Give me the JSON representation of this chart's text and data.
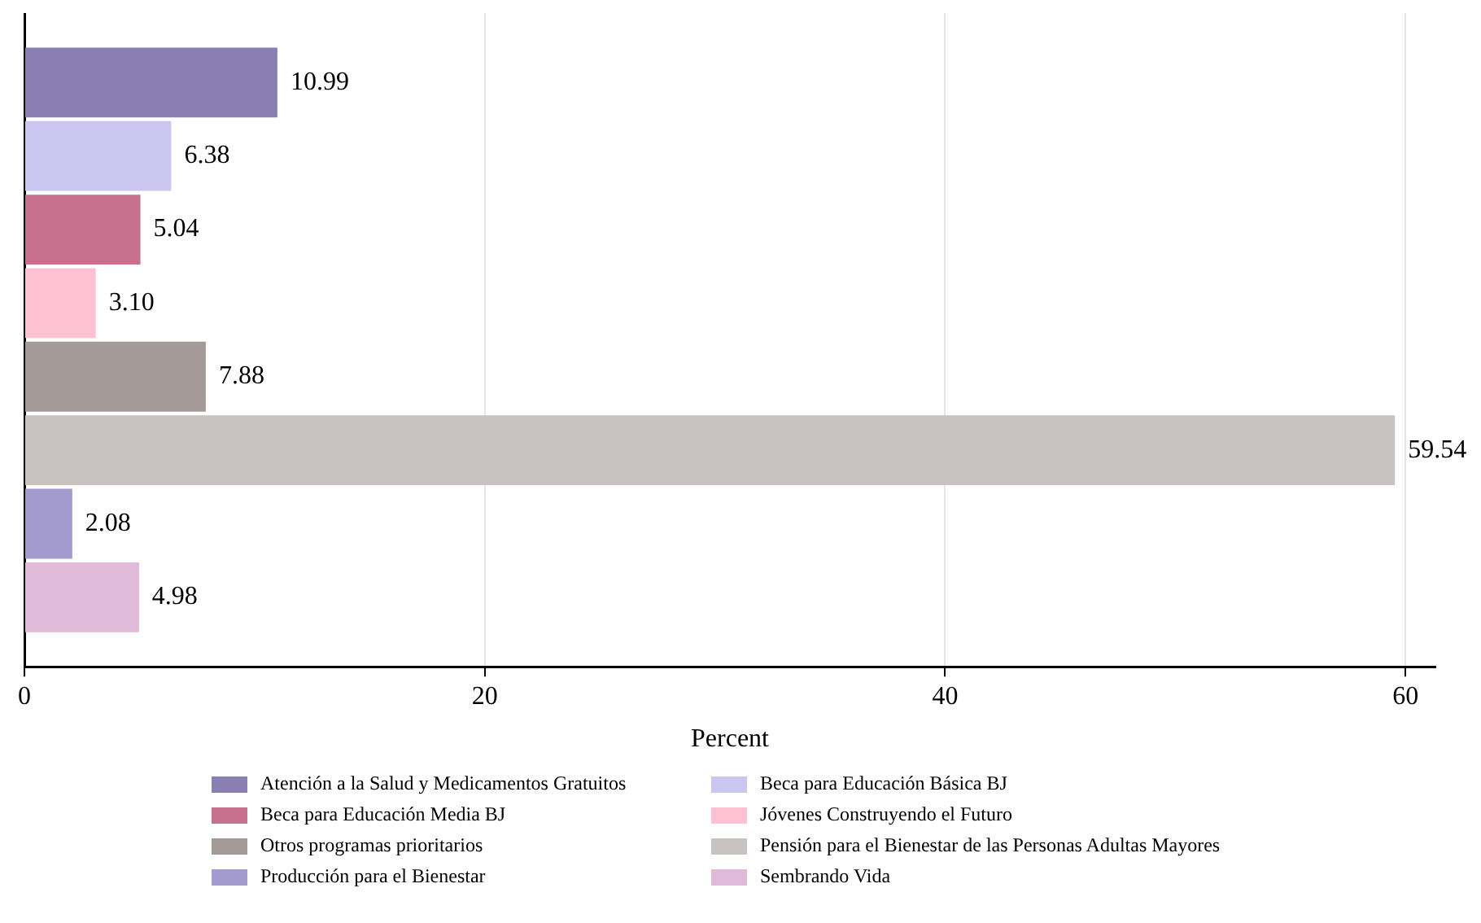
{
  "chart_data": {
    "type": "bar",
    "orientation": "horizontal",
    "categories": [
      null
    ],
    "xlabel": "Percent",
    "xlim": [
      0,
      61.3
    ],
    "xticks": [
      0,
      20,
      40,
      60
    ],
    "grid": "x",
    "legend": "bottom",
    "series": [
      {
        "name": "Atención a la Salud y Medicamentos Gratuitos",
        "color": "#8a7fb2",
        "values": [
          10.99
        ],
        "value_labels": [
          "10.99"
        ]
      },
      {
        "name": "Beca para Educación Básica BJ",
        "color": "#cbc6ef",
        "values": [
          6.38
        ],
        "value_labels": [
          "6.38"
        ]
      },
      {
        "name": "Beca para Educación Media BJ",
        "color": "#c8718f",
        "values": [
          5.04
        ],
        "value_labels": [
          "5.04"
        ]
      },
      {
        "name": "Jóvenes Construyendo el Futuro",
        "color": "#ffc1d3",
        "values": [
          3.1
        ],
        "value_labels": [
          "3.10"
        ]
      },
      {
        "name": "Otros programas prioritarios",
        "color": "#a49a98",
        "values": [
          7.88
        ],
        "value_labels": [
          "7.88"
        ]
      },
      {
        "name": "Pensión para el Bienestar de las Personas Adultas Mayores",
        "color": "#c8c3c1",
        "values": [
          59.54
        ],
        "value_labels": [
          "59.54"
        ]
      },
      {
        "name": "Producción para el Bienestar",
        "color": "#a39bcf",
        "values": [
          2.08
        ],
        "value_labels": [
          "2.08"
        ]
      },
      {
        "name": "Sembrando Vida",
        "color": "#e0bbd9",
        "values": [
          4.98
        ],
        "value_labels": [
          "4.98"
        ]
      }
    ]
  }
}
